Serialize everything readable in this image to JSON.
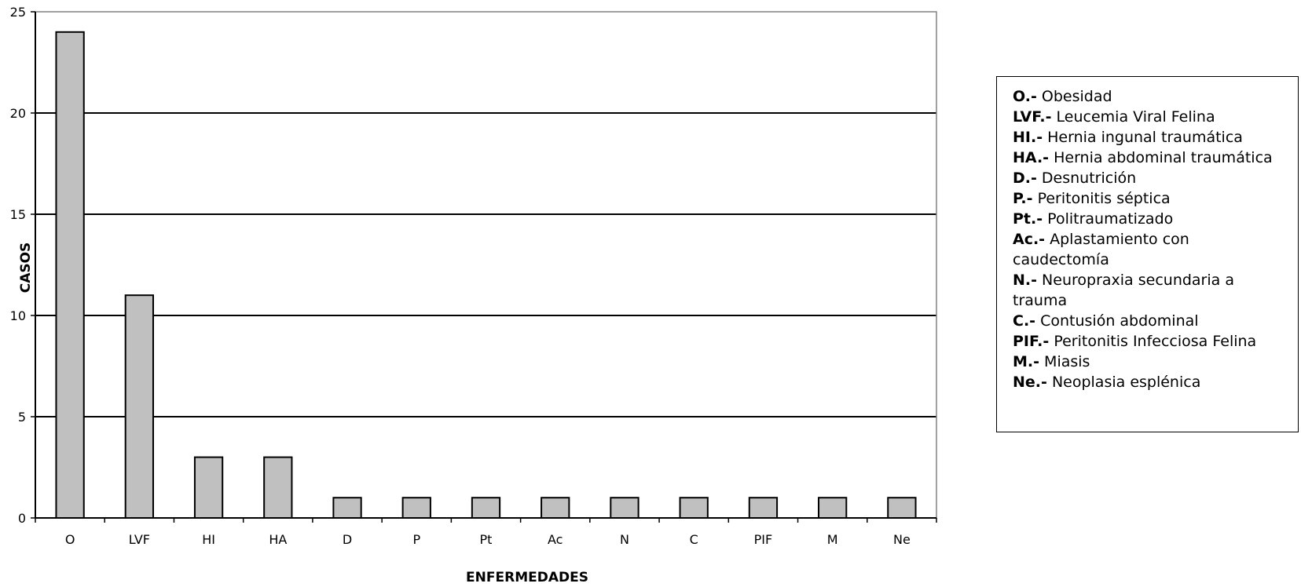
{
  "chart_data": {
    "type": "bar",
    "categories": [
      "O",
      "LVF",
      "HI",
      "HA",
      "D",
      "P",
      "Pt",
      "Ac",
      "N",
      "C",
      "PIF",
      "M",
      "Ne"
    ],
    "values": [
      24,
      11,
      3,
      3,
      1,
      1,
      1,
      1,
      1,
      1,
      1,
      1,
      1
    ],
    "xlabel": "ENFERMEDADES",
    "ylabel": "CASOS",
    "ylim": [
      0,
      25
    ],
    "yticks": [
      0,
      5,
      10,
      15,
      20,
      25
    ],
    "grid": true,
    "bar_color": "#c0c0c0",
    "legend_placement": "right",
    "legend": [
      {
        "code": "O.-",
        "text": " Obesidad"
      },
      {
        "code": "LVF.-",
        "text": " Leucemia Viral Felina"
      },
      {
        "code": "HI.-",
        "text": " Hernia ingunal traumática"
      },
      {
        "code": "HA.-",
        "text": " Hernia abdominal traumática"
      },
      {
        "code": "D.-",
        "text": " Desnutrición"
      },
      {
        "code": "P.-",
        "text": " Peritonitis séptica"
      },
      {
        "code": "Pt.-",
        "text": " Politraumatizado"
      },
      {
        "code": "Ac.-",
        "text": " Aplastamiento con caudectomía"
      },
      {
        "code": "N.-",
        "text": " Neuropraxia secundaria a trauma"
      },
      {
        "code": "C.-",
        "text": " Contusión abdominal"
      },
      {
        "code": "PIF.-",
        "text": " Peritonitis Infecciosa Felina"
      },
      {
        "code": "M.-",
        "text": "  Miasis"
      },
      {
        "code": "Ne.-",
        "text": " Neoplasia esplénica"
      }
    ]
  }
}
